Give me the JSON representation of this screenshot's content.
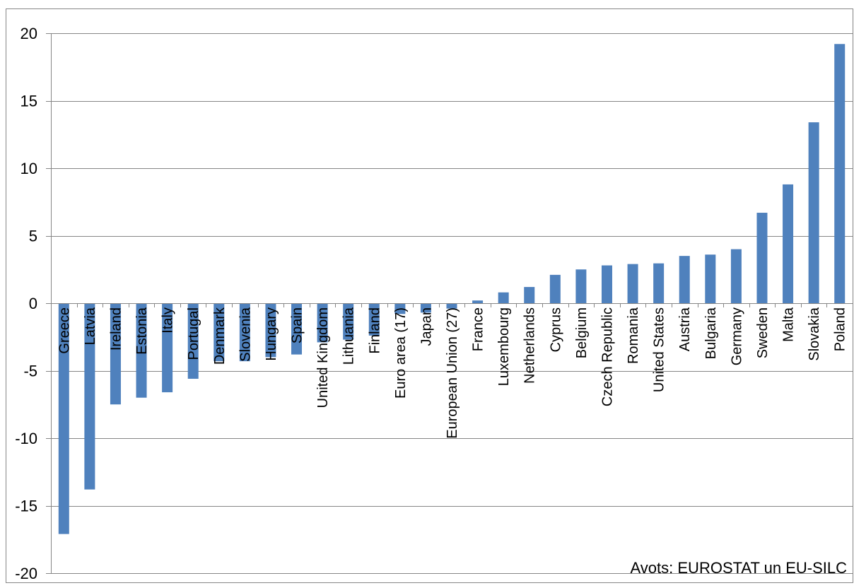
{
  "chart_data": {
    "type": "bar",
    "categories": [
      "Greece",
      "Latvia",
      "Ireland",
      "Estonia",
      "Italy",
      "Portugal",
      "Denmark",
      "Slovenia",
      "Hungary",
      "Spain",
      "United Kingdom",
      "Lithuania",
      "Finland",
      "Euro area (17)",
      "Japan",
      "European Union (27)",
      "France",
      "Luxembourg",
      "Netherlands",
      "Cyprus",
      "Belgium",
      "Czech Republic",
      "Romania",
      "United States",
      "Austria",
      "Bulgaria",
      "Germany",
      "Sweden",
      "Malta",
      "Slovakia",
      "Poland"
    ],
    "values": [
      -17.1,
      -13.8,
      -7.5,
      -7.0,
      -6.6,
      -5.6,
      -4.3,
      -4.3,
      -4.0,
      -3.8,
      -2.9,
      -2.7,
      -2.4,
      -0.8,
      -0.7,
      -0.4,
      0.2,
      0.8,
      1.2,
      2.1,
      2.5,
      2.8,
      2.9,
      2.95,
      3.5,
      3.6,
      4.0,
      6.7,
      8.8,
      13.4,
      19.2
    ],
    "ylim": [
      -20,
      20
    ],
    "yticks": [
      20,
      15,
      10,
      5,
      0,
      -5,
      -10,
      -15,
      -20
    ],
    "grid": true,
    "legend": "none",
    "bar_color": "#4F81BD",
    "annotation": "Avots: EUROSTAT un EU-SILC"
  }
}
